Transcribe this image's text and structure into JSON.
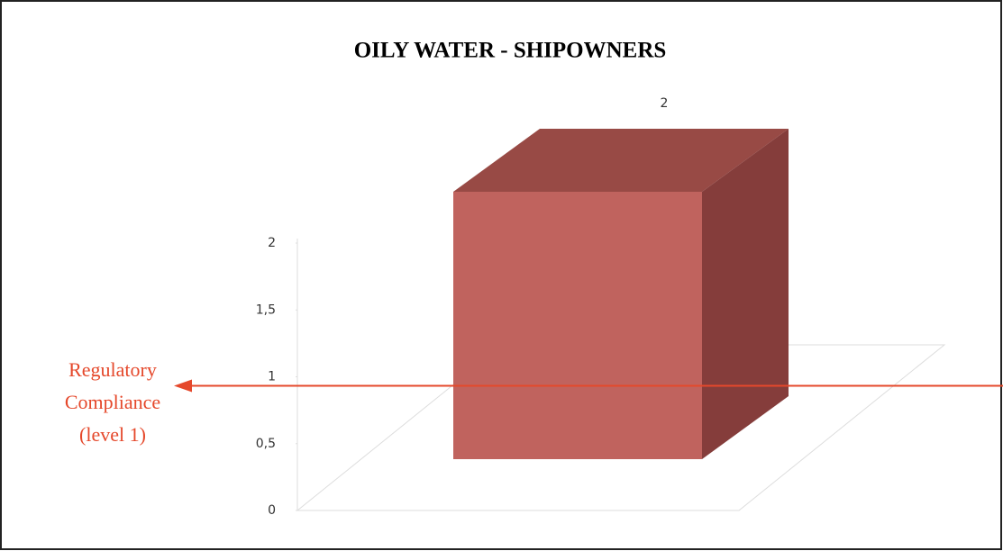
{
  "chart_data": {
    "type": "bar3d",
    "title": "OILY WATER - SHIPOWNERS",
    "categories": [
      null
    ],
    "values": [
      2
    ],
    "color": "#c0635e",
    "ylim": [
      0,
      2
    ],
    "yticks": [
      0,
      {
        "value": 0.5,
        "label": "0,5"
      },
      1,
      {
        "value": 1.5,
        "label": "1,5"
      },
      2
    ],
    "annotation": {
      "lines": [
        "Regulatory",
        "Compliance",
        "(level 1)"
      ],
      "value": 1,
      "color": "#e5482b"
    }
  }
}
